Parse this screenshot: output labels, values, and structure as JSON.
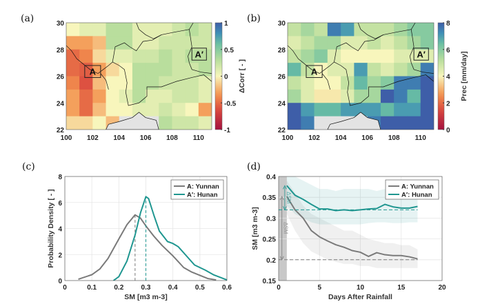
{
  "colors": {
    "yunnan": "#7a7a7a",
    "hunan": "#1f9690",
    "missing": "#e3e3e3",
    "border": "#111111"
  },
  "chart_data": [
    {
      "panel_label": "(a)",
      "type": "heatmap",
      "title": "",
      "xlabel": "",
      "ylabel": "",
      "colorbar_label": "ΔCorr [ - ]",
      "clim": [
        -1,
        1
      ],
      "colorbar_ticks": [
        "1",
        "0.5",
        "0",
        "-0.5",
        "-1"
      ],
      "xlim": [
        100,
        111
      ],
      "ylim": [
        22,
        30
      ],
      "xticks": [
        "100",
        "102",
        "104",
        "106",
        "108",
        "110"
      ],
      "yticks": [
        "22",
        "24",
        "26",
        "28",
        "30"
      ],
      "grid_lon_start": 100,
      "grid_lat_top": 30,
      "cell_deg": 1,
      "values": [
        [
          0,
          0.1,
          0.1,
          0.3,
          0.3,
          0.1,
          0.1,
          0.1,
          0.2,
          0.3,
          0.2
        ],
        [
          -0.3,
          -0.3,
          -0.2,
          0.3,
          0.3,
          0.1,
          0.1,
          0.2,
          0.2,
          0.2,
          0.2
        ],
        [
          -0.5,
          -0.4,
          -0.1,
          0.1,
          0.1,
          0.2,
          0.2,
          0.3,
          0.2,
          0.3,
          0.3
        ],
        [
          -0.5,
          -0.55,
          -0.3,
          -0.1,
          0,
          0.3,
          0.3,
          0.3,
          0.2,
          0.2,
          0.3
        ],
        [
          -0.4,
          -0.6,
          -0.2,
          0,
          0,
          0.3,
          0.3,
          0.2,
          0.2,
          0.2,
          0.1
        ],
        [
          -0.3,
          -0.5,
          -0.3,
          0,
          0.1,
          0.3,
          0.1,
          0.1,
          0.2,
          0.2,
          0.1
        ],
        [
          -0.3,
          -0.5,
          -0.2,
          0,
          0,
          0.1,
          0.1,
          0.2,
          0.1,
          0,
          -0.3
        ],
        [
          -0.1,
          -0.1,
          0,
          -0.2,
          null,
          null,
          null,
          0.3,
          0.2,
          0.2,
          0.1
        ]
      ],
      "regions": [
        {
          "label": "A",
          "lon": [
            101.4,
            102.6
          ],
          "lat": [
            25.9,
            26.8
          ]
        },
        {
          "label": "A′",
          "lon": [
            109.5,
            110.6
          ],
          "lat": [
            27.2,
            28.1
          ]
        }
      ]
    },
    {
      "panel_label": "(b)",
      "type": "heatmap",
      "title": "",
      "xlabel": "",
      "ylabel": "",
      "colorbar_label": "Prec [mm/day]",
      "clim": [
        0,
        8
      ],
      "colorbar_ticks": [
        "8",
        "6",
        "4",
        "2",
        "0"
      ],
      "xlim": [
        100,
        111
      ],
      "ylim": [
        22,
        30
      ],
      "xticks": [
        "100",
        "102",
        "104",
        "106",
        "108",
        "110"
      ],
      "yticks": [
        "22",
        "24",
        "26",
        "28",
        "30"
      ],
      "grid_lon_start": 100,
      "grid_lat_top": 30,
      "cell_deg": 1,
      "values": [
        [
          5,
          5.5,
          5,
          7.5,
          7,
          5,
          5,
          5,
          5.5,
          6,
          6
        ],
        [
          4.5,
          5,
          5.5,
          5.5,
          4.5,
          4.5,
          5,
          4.5,
          5,
          5.5,
          6
        ],
        [
          5,
          5.5,
          6,
          4.5,
          4,
          4,
          4,
          4,
          4.5,
          4.5,
          4.5
        ],
        [
          6.5,
          5,
          4,
          4.5,
          4.5,
          7,
          5,
          4.5,
          5,
          5.5,
          7.5
        ],
        [
          5,
          4.5,
          4,
          4,
          5,
          6.5,
          5.5,
          6,
          7.5,
          7.5,
          8
        ],
        [
          5.5,
          4.5,
          3.8,
          3.8,
          4.5,
          5.5,
          5.5,
          8,
          7.5,
          6.5,
          8
        ],
        [
          8,
          7,
          6.5,
          6.5,
          7,
          7,
          7,
          6.5,
          7,
          7,
          8
        ],
        [
          8,
          7.5,
          null,
          null,
          null,
          null,
          7.5,
          8,
          8,
          8,
          8
        ]
      ],
      "regions": [
        {
          "label": "A",
          "lon": [
            101.4,
            102.6
          ],
          "lat": [
            25.9,
            26.8
          ]
        },
        {
          "label": "A′",
          "lon": [
            109.5,
            110.6
          ],
          "lat": [
            27.2,
            28.1
          ]
        }
      ]
    },
    {
      "panel_label": "(c)",
      "type": "line",
      "xlabel": "SM [m3 m-3]",
      "ylabel": "Probability Density [ - ]",
      "xlim": [
        0,
        0.6
      ],
      "ylim": [
        0,
        8
      ],
      "xticks": [
        0,
        0.1,
        0.2,
        0.3,
        0.4,
        0.5,
        0.6
      ],
      "xtick_labels": [
        "0",
        "0.1",
        "0.2",
        "0.3",
        "0.4",
        "0.5",
        "0.6"
      ],
      "yticks": [
        0,
        2,
        4,
        6,
        8
      ],
      "ytick_labels": [
        "0",
        "2",
        "4",
        "6",
        "8"
      ],
      "grid": true,
      "legend": "top-right",
      "series": [
        {
          "name": "A: Yunnan",
          "color_key": "yunnan",
          "median": 0.26,
          "x": [
            0.05,
            0.1,
            0.13,
            0.16,
            0.2,
            0.23,
            0.26,
            0.28,
            0.3,
            0.33,
            0.36,
            0.4,
            0.44,
            0.47,
            0.5,
            0.53,
            0.56
          ],
          "y": [
            0.1,
            0.45,
            0.9,
            1.7,
            3.2,
            4.3,
            5.05,
            4.8,
            4.2,
            3.4,
            2.7,
            1.9,
            1.0,
            0.65,
            0.4,
            0.15,
            0.05
          ]
        },
        {
          "name": "A′: Hunan",
          "color_key": "hunan",
          "median": 0.3,
          "x": [
            0.18,
            0.2,
            0.23,
            0.26,
            0.28,
            0.3,
            0.31,
            0.33,
            0.35,
            0.38,
            0.4,
            0.42,
            0.45,
            0.48,
            0.52,
            0.55,
            0.6
          ],
          "y": [
            0,
            0.3,
            1.5,
            3.5,
            5.2,
            6.45,
            6.3,
            5.0,
            3.8,
            3.0,
            2.85,
            2.6,
            1.9,
            1.2,
            0.8,
            0.45,
            0.05
          ]
        }
      ]
    },
    {
      "panel_label": "(d)",
      "type": "line",
      "xlabel": "Days After Rainfall",
      "ylabel": "SM [m3 m-3]",
      "xlim": [
        0,
        20
      ],
      "ylim": [
        0.15,
        0.4
      ],
      "xticks": [
        0,
        5,
        10,
        15,
        20
      ],
      "xtick_labels": [
        "0",
        "5",
        "10",
        "15",
        "20"
      ],
      "yticks": [
        0.15,
        0.2,
        0.25,
        0.3,
        0.35,
        0.4
      ],
      "ytick_labels": [
        "0.15",
        "0.2",
        "0.25",
        "0.3",
        "0.35",
        "0.4"
      ],
      "grid": true,
      "legend": "top-right",
      "rain_day_span": [
        0,
        1
      ],
      "annotation": "ΔSM",
      "series": [
        {
          "name": "A: Yunnan",
          "color_key": "yunnan",
          "dry_level": 0.2,
          "x": [
            1,
            2,
            3,
            4,
            5,
            6,
            7,
            8,
            9,
            10,
            11,
            12,
            13,
            14,
            15,
            16,
            17
          ],
          "y": [
            0.352,
            0.32,
            0.3,
            0.27,
            0.255,
            0.245,
            0.236,
            0.23,
            0.222,
            0.218,
            0.208,
            0.217,
            0.212,
            0.21,
            0.21,
            0.207,
            0.202
          ],
          "upper": [
            0.39,
            0.36,
            0.33,
            0.31,
            0.3,
            0.29,
            0.28,
            0.27,
            0.27,
            0.26,
            0.25,
            0.245,
            0.24,
            0.24,
            0.235,
            0.235,
            0.225
          ],
          "lower": [
            0.31,
            0.27,
            0.24,
            0.22,
            0.21,
            0.2,
            0.195,
            0.19,
            0.19,
            0.185,
            0.185,
            0.18,
            0.18,
            0.18,
            0.18,
            0.18,
            0.18
          ]
        },
        {
          "name": "A′: Hunan",
          "color_key": "hunan",
          "dry_level": 0.32,
          "x": [
            1,
            2,
            3,
            4,
            5,
            6,
            7,
            8,
            9,
            10,
            11,
            12,
            13,
            14,
            15,
            16,
            17
          ],
          "y": [
            0.378,
            0.355,
            0.345,
            0.333,
            0.322,
            0.322,
            0.318,
            0.32,
            0.318,
            0.32,
            0.322,
            0.323,
            0.333,
            0.327,
            0.324,
            0.324,
            0.328
          ],
          "upper": [
            0.41,
            0.4,
            0.39,
            0.38,
            0.37,
            0.37,
            0.365,
            0.37,
            0.37,
            0.37,
            0.37,
            0.365,
            0.37,
            0.36,
            0.36,
            0.36,
            0.36
          ],
          "lower": [
            0.33,
            0.31,
            0.3,
            0.29,
            0.285,
            0.285,
            0.285,
            0.285,
            0.285,
            0.285,
            0.288,
            0.29,
            0.29,
            0.288,
            0.288,
            0.29,
            0.29
          ]
        }
      ]
    }
  ]
}
